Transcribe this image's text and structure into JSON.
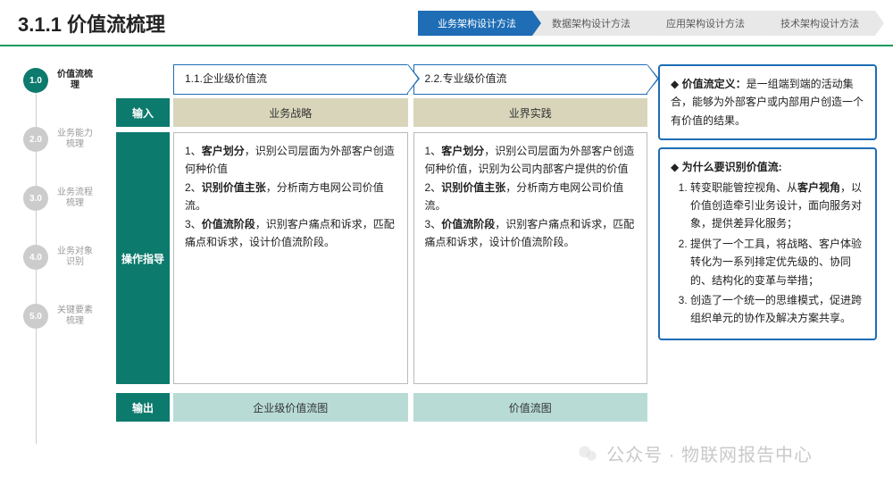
{
  "colors": {
    "accent": "#0d7a6e",
    "blue": "#1e6db5",
    "green_line": "#0a9b5f",
    "beige": "#d8d5ba",
    "mint": "#b8dbd6",
    "grey": "#e8e8e8"
  },
  "header": {
    "title": "3.1.1 价值流梳理"
  },
  "tabs": [
    {
      "label": "业务架构设计方法",
      "active": true
    },
    {
      "label": "数据架构设计方法",
      "active": false
    },
    {
      "label": "应用架构设计方法",
      "active": false
    },
    {
      "label": "技术架构设计方法",
      "active": false
    }
  ],
  "sidebar": [
    {
      "num": "1.0",
      "label": "价值流梳理",
      "active": true
    },
    {
      "num": "2.0",
      "label": "业务能力梳理",
      "active": false
    },
    {
      "num": "3.0",
      "label": "业务流程梳理",
      "active": false
    },
    {
      "num": "4.0",
      "label": "业务对象识别",
      "active": false
    },
    {
      "num": "5.0",
      "label": "关键要素梳理",
      "active": false
    }
  ],
  "row_labels": {
    "input": "输入",
    "guide": "操作指导",
    "output": "输出"
  },
  "columns": [
    {
      "header": "1.1.企业级价值流",
      "input": "业务战略",
      "guide_html": "1、<b>客户划分</b>，识别公司层面为外部客户创造何种价值<br>2、<b>识别价值主张</b>，分析南方电网公司价值流。<br>3、<b>价值流阶段</b>，识别客户痛点和诉求，匹配痛点和诉求，设计价值流阶段。",
      "output": "企业级价值流图"
    },
    {
      "header": "2.2.专业级价值流",
      "input": "业界实践",
      "guide_html": "1、<b>客户划分</b>，识别公司层面为外部客户创造何种价值，识别为公司内部客户提供的价值<br>2、<b>识别价值主张</b>，分析南方电网公司价值流。<br>3、<b>价值流阶段</b>，识别客户痛点和诉求，匹配痛点和诉求，设计价值流阶段。",
      "output": "价值流图"
    }
  ],
  "right": {
    "def_label": "价值流定义：",
    "def_text": "是一组端到端的活动集合，能够为外部客户或内部用户创造一个有价值的结果。",
    "why_label": "为什么要识别价值流:",
    "why_items_html": [
      "转变职能管控视角、从<b>客户视角</b>，以价值创造牵引业务设计，面向服务对象，提供差异化服务；",
      "提供了一个工具，将战略、客户体验转化为一系列排定优先级的、协同的、结构化的变革与举措；",
      "创造了一个统一的思维模式，促进跨组织单元的协作及解决方案共享。"
    ]
  },
  "watermark": "公众号 · 物联网报告中心"
}
